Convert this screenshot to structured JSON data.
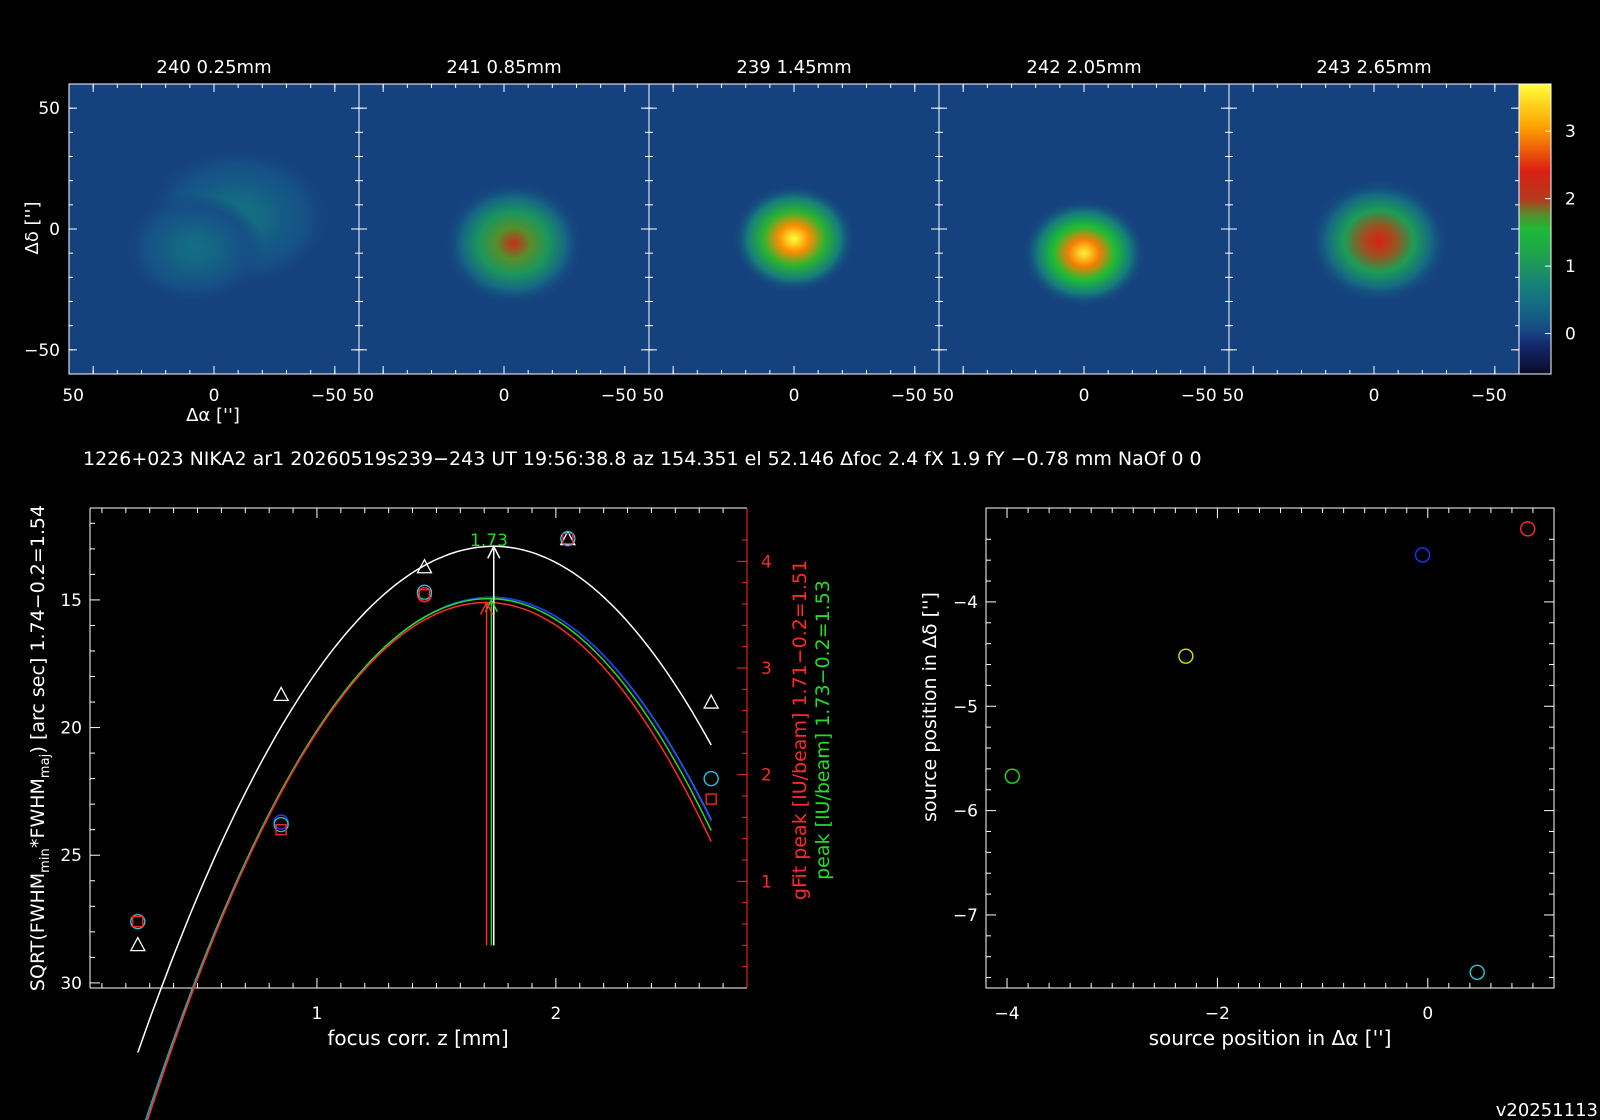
{
  "colors": {
    "background": "#000000",
    "axis": "#ffffff",
    "white": "#ffffff",
    "red": "#ff2a2a",
    "green": "#22dd22",
    "blue": "#2233ff",
    "cyan": "#22cccc",
    "magenta": "#cc22cc",
    "yellow": "#dddd00",
    "map_background": "#164f86"
  },
  "chart_data": [
    {
      "type": "heatmap",
      "title": "",
      "colormap": "blue-green-yellow-red",
      "x_tick_labels": [
        "50",
        "0",
        "−50"
      ],
      "y_tick_labels": [
        "50",
        "0",
        "−50"
      ],
      "xlabel": "Δα ['']",
      "ylabel": "Δδ ['']",
      "xlim": [
        60,
        -60
      ],
      "ylim": [
        -60,
        60
      ],
      "panels": [
        {
          "title": "240 0.25mm",
          "peak": 0.9,
          "spot": [
            [
              -10,
              5,
              12,
              9,
              0.6
            ],
            [
              8,
              -8,
              9,
              7,
              0.55
            ]
          ]
        },
        {
          "title": "241 0.85mm",
          "peak": 2.2,
          "spot": [
            [
              -4,
              -6,
              9,
              8,
              1.0
            ]
          ]
        },
        {
          "title": "239 1.45mm",
          "peak": 3.7,
          "spot": [
            [
              0,
              -4,
              8,
              7,
              1.0
            ]
          ]
        },
        {
          "title": "242 2.05mm",
          "peak": 3.6,
          "spot": [
            [
              0,
              -10,
              8,
              7,
              1.0
            ]
          ]
        },
        {
          "title": "243 2.65mm",
          "peak": 2.4,
          "spot": [
            [
              -2,
              -5,
              9,
              8,
              1.0
            ]
          ]
        }
      ],
      "colorbar": {
        "min": -0.6,
        "max": 3.7,
        "tick_labels": [
          "3",
          "2",
          "1",
          "0"
        ],
        "ticks": [
          3,
          2,
          1,
          0
        ]
      }
    },
    {
      "type": "scatter",
      "xlabel": "focus corr. z [mm]",
      "ylabel_left": "SQRT(FWHM",
      "ylabel_left_min": "min",
      "ylabel_left_mid": "*FWHM",
      "ylabel_left_maj": "maj",
      "ylabel_left_end": ") [arc sec] 1.74−0.2=1.54",
      "ylabel_right_red": "gFit peak [IU/beam] 1.71−0.2=1.51",
      "ylabel_right_green": "peak [IU/beam] 1.73−0.2=1.53",
      "xlim": [
        0.05,
        2.8
      ],
      "ylim_left": [
        30.2,
        11.4
      ],
      "ylim_right": [
        0,
        4.5
      ],
      "x_tick_labels": [
        "1",
        "2"
      ],
      "x_ticks": [
        1,
        2
      ],
      "y_left_tick_labels": [
        "15",
        "20",
        "25",
        "30"
      ],
      "y_left_ticks": [
        15,
        20,
        25,
        30
      ],
      "y_right_tick_labels": [
        "4",
        "3",
        "2",
        "1"
      ],
      "y_right_ticks": [
        4,
        3,
        2,
        1
      ],
      "x": [
        0.25,
        0.85,
        1.45,
        2.05,
        2.65
      ],
      "series": [
        {
          "name": "fwhm",
          "color": "white",
          "marker": "triangle",
          "values": [
            28.5,
            18.7,
            13.7,
            12.6,
            19.0
          ]
        },
        {
          "name": "",
          "color": "red",
          "marker": "circle",
          "values": [
            27.6,
            23.7,
            14.8,
            12.6,
            22.0
          ]
        },
        {
          "name": "",
          "color": "blue",
          "marker": "circle",
          "values": [
            27.6,
            23.7,
            14.7,
            12.6,
            22.0
          ]
        },
        {
          "name": "",
          "color": "cyan",
          "marker": "circle",
          "values": [
            27.6,
            23.8,
            14.7,
            12.6,
            22.0
          ]
        },
        {
          "name": "",
          "color": "red",
          "marker": "square",
          "values": [
            27.6,
            24.0,
            14.8,
            12.6,
            22.8
          ]
        }
      ],
      "fits": [
        {
          "color": "white",
          "peak_x": 1.74,
          "peak_y": 12.9,
          "a": 9.4
        },
        {
          "color": "cyan",
          "peak_x": 1.73,
          "peak_y": 14.9,
          "a": 10.3
        },
        {
          "color": "blue",
          "peak_x": 1.73,
          "peak_y": 14.9,
          "a": 10.35
        },
        {
          "color": "green",
          "peak_x": 1.72,
          "peak_y": 14.95,
          "a": 10.5
        },
        {
          "color": "red",
          "peak_x": 1.71,
          "peak_y": 15.1,
          "a": 10.6
        }
      ],
      "annotation": "1.73",
      "arrows": [
        {
          "color": "white",
          "x": 1.74,
          "top": 12.9
        },
        {
          "color": "green",
          "x": 1.73,
          "top": 15.0
        },
        {
          "color": "red",
          "x": 1.71,
          "top": 15.1
        }
      ],
      "arrow_bottom_right_axis": 0.4
    },
    {
      "type": "scatter",
      "xlabel": "source position in Δα ['']",
      "ylabel": "source position in Δδ ['']",
      "xlim": [
        -4.2,
        1.2
      ],
      "ylim": [
        -7.7,
        -3.1
      ],
      "x_tick_labels": [
        "−4",
        "−2",
        "0"
      ],
      "x_ticks": [
        -4,
        -2,
        0
      ],
      "y_tick_labels": [
        "−4",
        "−5",
        "−6",
        "−7"
      ],
      "y_ticks": [
        -4,
        -5,
        -6,
        -7
      ],
      "points": [
        {
          "x": 0.95,
          "y": -3.3,
          "color": "red"
        },
        {
          "x": -0.05,
          "y": -3.55,
          "color": "blue"
        },
        {
          "x": -2.3,
          "y": -4.52,
          "color": "yellow"
        },
        {
          "x": -3.95,
          "y": -5.67,
          "color": "green"
        },
        {
          "x": 0.47,
          "y": -7.55,
          "color": "cyan"
        }
      ]
    }
  ],
  "info_line": "1226+023 NIKA2 ar1 20260519s239−243 UT 19:56:38.8 az 154.351 el 52.146 Δfoc 2.4 fX 1.9 fY −0.78 mm NaOf 0 0",
  "version": "v20251113"
}
